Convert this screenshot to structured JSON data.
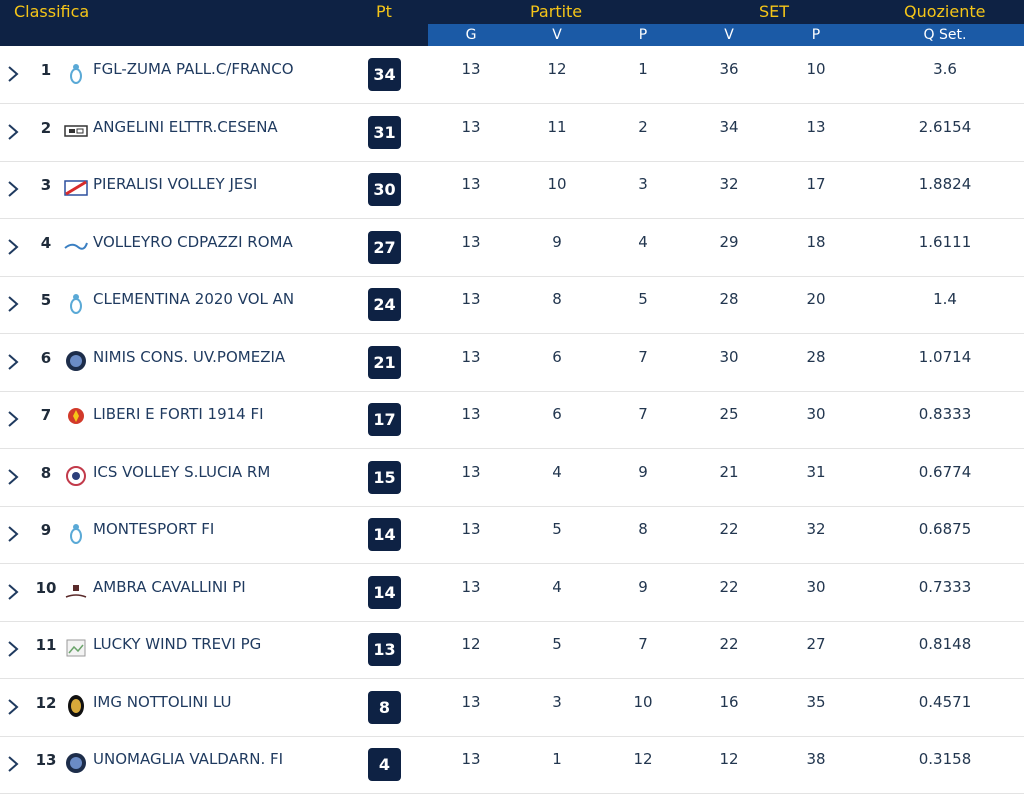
{
  "header": {
    "classifica": "Classifica",
    "pt": "Pt",
    "partite": "Partite",
    "set": "SET",
    "quoziente": "Quoziente"
  },
  "subheader": {
    "g": "G",
    "v1": "V",
    "p1": "P",
    "v2": "V",
    "p2": "P",
    "qset": "Q Set."
  },
  "colors": {
    "header_bg": "#0e2244",
    "subheader_bg": "#1b5aa6",
    "accent": "#f5c518",
    "badge": "#0e2244"
  },
  "rows": [
    {
      "rank": "1",
      "team": "FGL-ZUMA PALL.C/FRANCO",
      "pt": "34",
      "g": "13",
      "v": "12",
      "p": "1",
      "sv": "36",
      "sp": "10",
      "q": "3.6",
      "logo": "volleyball-player-icon"
    },
    {
      "rank": "2",
      "team": "ANGELINI ELTTR.CESENA",
      "pt": "31",
      "g": "13",
      "v": "11",
      "p": "2",
      "sv": "34",
      "sp": "13",
      "q": "2.6154",
      "logo": "club-logo-icon"
    },
    {
      "rank": "3",
      "team": "PIERALISI VOLLEY JESI",
      "pt": "30",
      "g": "13",
      "v": "10",
      "p": "3",
      "sv": "32",
      "sp": "17",
      "q": "1.8824",
      "logo": "flag-logo-icon"
    },
    {
      "rank": "4",
      "team": "VOLLEYRO CDPAZZI ROMA",
      "pt": "27",
      "g": "13",
      "v": "9",
      "p": "4",
      "sv": "29",
      "sp": "18",
      "q": "1.6111",
      "logo": "wordmark-logo-icon"
    },
    {
      "rank": "5",
      "team": "CLEMENTINA 2020 VOL AN",
      "pt": "24",
      "g": "13",
      "v": "8",
      "p": "5",
      "sv": "28",
      "sp": "20",
      "q": "1.4",
      "logo": "volleyball-player-icon"
    },
    {
      "rank": "6",
      "team": "NIMIS CONS. UV.POMEZIA",
      "pt": "21",
      "g": "13",
      "v": "6",
      "p": "7",
      "sv": "30",
      "sp": "28",
      "q": "1.0714",
      "logo": "round-badge-icon"
    },
    {
      "rank": "7",
      "team": "LIBERI E FORTI 1914 FI",
      "pt": "17",
      "g": "13",
      "v": "6",
      "p": "7",
      "sv": "25",
      "sp": "30",
      "q": "0.8333",
      "logo": "crest-logo-icon"
    },
    {
      "rank": "8",
      "team": "ICS VOLLEY S.LUCIA RM",
      "pt": "15",
      "g": "13",
      "v": "4",
      "p": "9",
      "sv": "21",
      "sp": "31",
      "q": "0.6774",
      "logo": "emblem-logo-icon"
    },
    {
      "rank": "9",
      "team": "MONTESPORT FI",
      "pt": "14",
      "g": "13",
      "v": "5",
      "p": "8",
      "sv": "22",
      "sp": "32",
      "q": "0.6875",
      "logo": "volleyball-player-icon"
    },
    {
      "rank": "10",
      "team": "AMBRA CAVALLINI PI",
      "pt": "14",
      "g": "13",
      "v": "4",
      "p": "9",
      "sv": "22",
      "sp": "30",
      "q": "0.7333",
      "logo": "script-logo-icon"
    },
    {
      "rank": "11",
      "team": "LUCKY WIND TREVI PG",
      "pt": "13",
      "g": "12",
      "v": "5",
      "p": "7",
      "sv": "22",
      "sp": "27",
      "q": "0.8148",
      "logo": "broken-image-icon"
    },
    {
      "rank": "12",
      "team": "IMG NOTTOLINI LU",
      "pt": "8",
      "g": "13",
      "v": "3",
      "p": "10",
      "sv": "16",
      "sp": "35",
      "q": "0.4571",
      "logo": "oval-badge-icon"
    },
    {
      "rank": "13",
      "team": "UNOMAGLIA VALDARN. FI",
      "pt": "4",
      "g": "13",
      "v": "1",
      "p": "12",
      "sv": "12",
      "sp": "38",
      "q": "0.3158",
      "logo": "round-badge-icon"
    }
  ]
}
